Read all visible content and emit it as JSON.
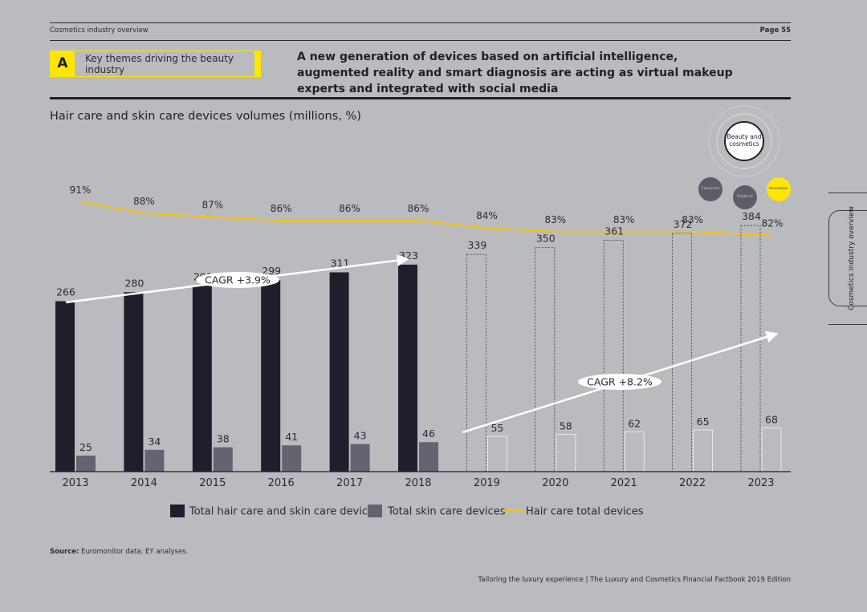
{
  "header": {
    "section": "Cosmetics industry overview",
    "page": "Page 55"
  },
  "theme": {
    "letter": "A",
    "text": "Key themes driving the beauty industry"
  },
  "headline": "A new generation of devices based on artificial intelligence, augmented reality and smart diagnosis are acting as virtual makeup experts and integrated with social media",
  "badge": {
    "main": "Beauty and cosmetics",
    "consumer": "Consumer",
    "products": "Products",
    "innovation": "Innovation"
  },
  "side_tab": "Cosmetics industry overview",
  "source": {
    "label": "Source:",
    "text": "Euromonitor data; EY analyses."
  },
  "footer": "Tailoring the luxury experience | The Luxury and Cosmetics Financial Factbook 2019 Edition",
  "colors": {
    "total": "#1f1f2c",
    "skin": "#646470",
    "line": "#f5c400",
    "background": "#babbbf"
  },
  "chart_data": {
    "type": "bar",
    "title": "Hair care and skin care devices volumes (millions, %)",
    "categories": [
      "2013",
      "2014",
      "2015",
      "2016",
      "2017",
      "2018",
      "2019",
      "2020",
      "2021",
      "2022",
      "2023"
    ],
    "forecast_from": "2019",
    "series": [
      {
        "name": "Total hair care and skin care devices",
        "kind": "bar",
        "values": [
          266,
          280,
          290,
          299,
          311,
          323,
          339,
          350,
          361,
          372,
          384
        ]
      },
      {
        "name": "Total skin care devices",
        "kind": "bar",
        "values": [
          25,
          34,
          38,
          41,
          43,
          46,
          55,
          58,
          62,
          65,
          68
        ]
      },
      {
        "name": "Hair care total devices",
        "kind": "line",
        "values": [
          91,
          88,
          87,
          86,
          86,
          86,
          84,
          83,
          83,
          83,
          82
        ],
        "labels": [
          "91%",
          "88%",
          "87%",
          "86%",
          "86%",
          "86%",
          "84%",
          "83%",
          "83%",
          "83%",
          "82%"
        ]
      }
    ],
    "annotations": [
      {
        "text": "CAGR +3.9%",
        "from": "2013",
        "to": "2018"
      },
      {
        "text": "CAGR +8.2%",
        "from": "2018",
        "to": "2023"
      }
    ],
    "ylim": [
      0,
      384
    ],
    "legend": "bottom"
  }
}
